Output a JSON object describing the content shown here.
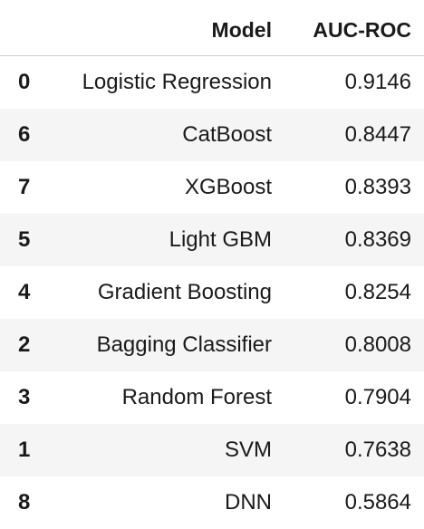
{
  "table": {
    "headers": {
      "model": "Model",
      "auc": "AUC-ROC"
    },
    "rows": [
      {
        "index": "0",
        "model": "Logistic Regression",
        "auc": "0.9146"
      },
      {
        "index": "6",
        "model": "CatBoost",
        "auc": "0.8447"
      },
      {
        "index": "7",
        "model": "XGBoost",
        "auc": "0.8393"
      },
      {
        "index": "5",
        "model": "Light GBM",
        "auc": "0.8369"
      },
      {
        "index": "4",
        "model": "Gradient Boosting",
        "auc": "0.8254"
      },
      {
        "index": "2",
        "model": "Bagging Classifier",
        "auc": "0.8008"
      },
      {
        "index": "3",
        "model": "Random Forest",
        "auc": "0.7904"
      },
      {
        "index": "1",
        "model": "SVM",
        "auc": "0.7638"
      },
      {
        "index": "8",
        "model": "DNN",
        "auc": "0.5864"
      }
    ]
  }
}
